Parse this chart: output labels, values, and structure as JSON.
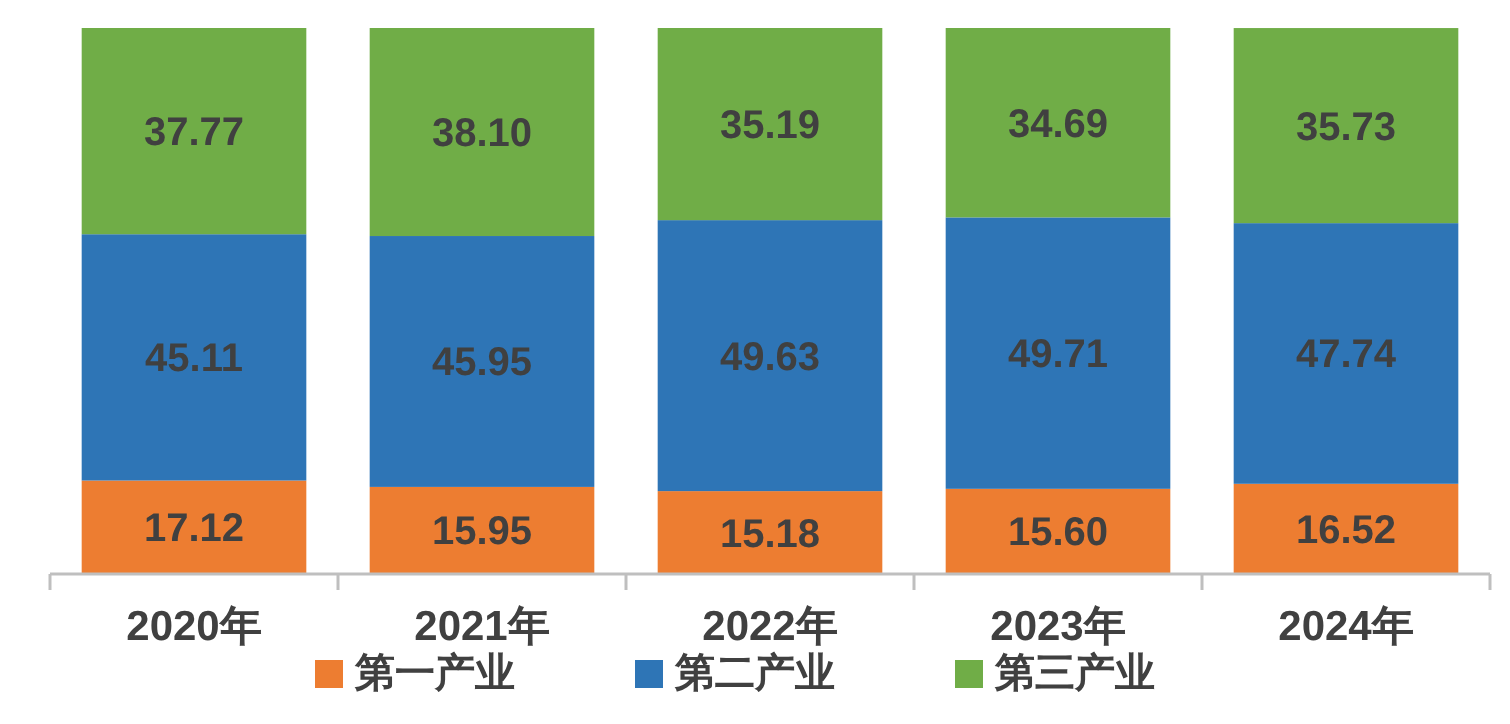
{
  "chart_data": {
    "type": "bar",
    "stacked": true,
    "categories": [
      "2020年",
      "2021年",
      "2022年",
      "2023年",
      "2024年"
    ],
    "series": [
      {
        "name": "第一产业",
        "color": "#ed7d31",
        "values": [
          17.12,
          15.95,
          15.18,
          15.6,
          16.52
        ],
        "value_labels": [
          "17.12",
          "15.95",
          "15.18",
          "15.60",
          "16.52"
        ]
      },
      {
        "name": "第二产业",
        "color": "#2e75b6",
        "values": [
          45.11,
          45.95,
          49.63,
          49.71,
          47.74
        ],
        "value_labels": [
          "45.11",
          "45.95",
          "49.63",
          "49.71",
          "47.74"
        ]
      },
      {
        "name": "第三产业",
        "color": "#70ad47",
        "values": [
          37.77,
          38.1,
          35.19,
          34.69,
          35.73
        ],
        "value_labels": [
          "37.77",
          "38.10",
          "35.19",
          "34.69",
          "35.73"
        ]
      }
    ],
    "legend": "bottom"
  }
}
